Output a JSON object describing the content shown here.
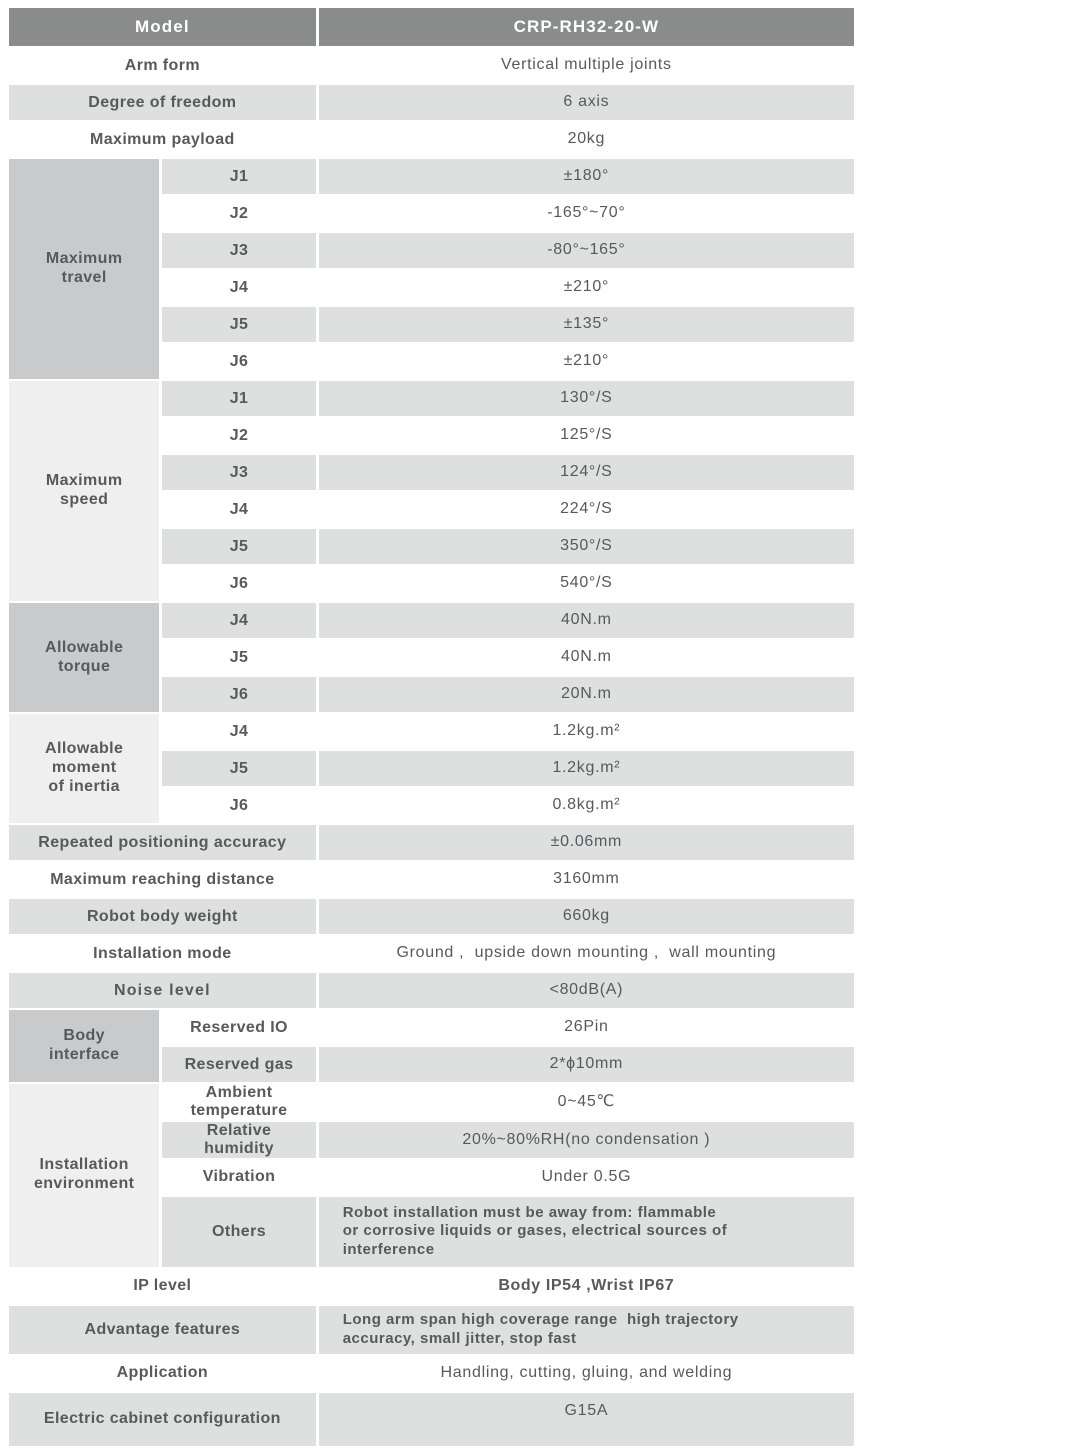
{
  "title": "Robot specification sheet",
  "colors": {
    "page_bg": "#ffffff",
    "header_bg": "#8a8b8b",
    "header_text": "#ffffff",
    "row_alt_bg": "#dedfdf",
    "group_dark_bg": "#c9cacc",
    "group_light_bg": "#efefef",
    "text": "#58595b"
  },
  "table": {
    "header": {
      "label": "Model",
      "value": "CRP-RH32-20-W"
    },
    "rows": [
      {
        "id": "arm-form",
        "label": "Arm form",
        "value": "Vertical multiple joints"
      },
      {
        "id": "degree-of-freedom",
        "label": "Degree of freedom",
        "value": "6 axis"
      },
      {
        "id": "maximum-payload",
        "label": "Maximum payload",
        "value": "20kg"
      },
      {
        "id": "travel-j1",
        "group": {
          "id": "maximum-travel",
          "label": "Maximum\ntravel",
          "rows": 6,
          "tone": "dark"
        },
        "label": "J1",
        "value": "±180°"
      },
      {
        "id": "travel-j2",
        "sub": true,
        "label": "J2",
        "value": "-165°~70°"
      },
      {
        "id": "travel-j3",
        "sub": true,
        "label": "J3",
        "value": "-80°~165°"
      },
      {
        "id": "travel-j4",
        "sub": true,
        "label": "J4",
        "value": "±210°"
      },
      {
        "id": "travel-j5",
        "sub": true,
        "label": "J5",
        "value": "±135°"
      },
      {
        "id": "travel-j6",
        "sub": true,
        "label": "J6",
        "value": "±210°"
      },
      {
        "id": "speed-j1",
        "group": {
          "id": "maximum-speed",
          "label": "Maximum\nspeed",
          "rows": 6,
          "tone": "light"
        },
        "label": "J1",
        "value": "130°/S"
      },
      {
        "id": "speed-j2",
        "sub": true,
        "label": "J2",
        "value": "125°/S"
      },
      {
        "id": "speed-j3",
        "sub": true,
        "label": "J3",
        "value": "124°/S"
      },
      {
        "id": "speed-j4",
        "sub": true,
        "label": "J4",
        "value": "224°/S"
      },
      {
        "id": "speed-j5",
        "sub": true,
        "label": "J5",
        "value": "350°/S"
      },
      {
        "id": "speed-j6",
        "sub": true,
        "label": "J6",
        "value": "540°/S"
      },
      {
        "id": "torque-j4",
        "group": {
          "id": "allowable-torque",
          "label": "Allowable\ntorque",
          "rows": 3,
          "tone": "dark"
        },
        "label": "J4",
        "value": "40N.m"
      },
      {
        "id": "torque-j5",
        "sub": true,
        "label": "J5",
        "value": "40N.m"
      },
      {
        "id": "torque-j6",
        "sub": true,
        "label": "J6",
        "value": "20N.m"
      },
      {
        "id": "inertia-j4",
        "group": {
          "id": "allowable-moment-of-inertia",
          "label": "Allowable\nmoment\nof inertia",
          "rows": 3,
          "tone": "light"
        },
        "label": "J4",
        "value": "1.2kg.m²"
      },
      {
        "id": "inertia-j5",
        "sub": true,
        "label": "J5",
        "value": "1.2kg.m²"
      },
      {
        "id": "inertia-j6",
        "sub": true,
        "label": "J6",
        "value": "0.8kg.m²"
      },
      {
        "id": "repeated-positioning-accuracy",
        "label": "Repeated positioning accuracy",
        "value": "±0.06mm"
      },
      {
        "id": "maximum-reaching-distance",
        "label": "Maximum reaching distance",
        "value": "3160mm"
      },
      {
        "id": "robot-body-weight",
        "label": "Robot body weight",
        "value": "660kg"
      },
      {
        "id": "installation-mode",
        "label": "Installation mode",
        "value": "Ground ,  upside down mounting ,  wall mounting"
      },
      {
        "id": "noise-level",
        "label": "Noise level",
        "value": "<80dB(A)"
      },
      {
        "id": "reserved-io",
        "group": {
          "id": "body-interface",
          "label": "Body\ninterface",
          "rows": 2,
          "tone": "dark"
        },
        "label": "Reserved IO",
        "value": "26Pin"
      },
      {
        "id": "reserved-gas",
        "sub": true,
        "label": "Reserved gas",
        "value": "2*ϕ10mm"
      },
      {
        "id": "ambient-temperature",
        "group": {
          "id": "installation-environment",
          "label": "Installation\nenvironment",
          "rows": 4,
          "tone": "light"
        },
        "label": "Ambient\ntemperature",
        "value": "0~45℃"
      },
      {
        "id": "relative-humidity",
        "sub": true,
        "label": "Relative\nhumidity",
        "value": "20%~80%RH(no condensation )"
      },
      {
        "id": "vibration",
        "sub": true,
        "label": "Vibration",
        "value": "Under 0.5G"
      },
      {
        "id": "others",
        "sub": true,
        "label": "Others",
        "value": "Robot installation must be away from: flammable\nor corrosive liquids or gases, electrical sources of\ninterference"
      },
      {
        "id": "ip-level",
        "label": "IP level",
        "value": "Body IP54 ,Wrist IP67"
      },
      {
        "id": "advantage-features",
        "label": "Advantage features",
        "value": "Long arm span high coverage range  high trajectory\naccuracy, small jitter, stop fast"
      },
      {
        "id": "application",
        "label": "Application",
        "value": "Handling, cutting, gluing, and welding"
      },
      {
        "id": "electric-cabinet-configuration",
        "label": "Electric cabinet configuration",
        "value": "G15A"
      }
    ]
  }
}
